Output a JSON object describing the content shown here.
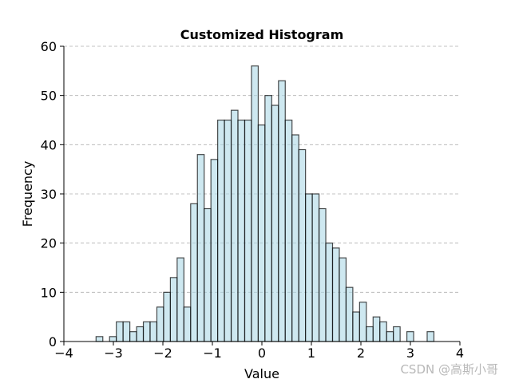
{
  "chart_data": {
    "type": "histogram",
    "title": "Customized Histogram",
    "xlabel": "Value",
    "ylabel": "Frequency",
    "xlim": [
      -4,
      4
    ],
    "ylim": [
      0,
      60
    ],
    "xticks": [
      "−4",
      "−3",
      "−2",
      "−1",
      "0",
      "1",
      "2",
      "3",
      "4"
    ],
    "yticks": [
      "0",
      "10",
      "20",
      "30",
      "40",
      "50",
      "60"
    ],
    "grid": "y-dashed",
    "bar_color": "#add8e6",
    "edge_color": "#000000",
    "bin_start": -3.35,
    "bin_width": 0.1365,
    "counts": [
      1,
      0,
      1,
      4,
      4,
      2,
      3,
      4,
      4,
      7,
      10,
      13,
      17,
      7,
      28,
      38,
      27,
      37,
      45,
      45,
      47,
      45,
      45,
      56,
      44,
      50,
      48,
      53,
      45,
      42,
      39,
      30,
      30,
      27,
      20,
      19,
      17,
      11,
      6,
      8,
      3,
      5,
      4,
      2,
      3,
      0,
      2,
      0,
      0,
      2
    ]
  },
  "watermark": "CSDN @高斯小哥"
}
